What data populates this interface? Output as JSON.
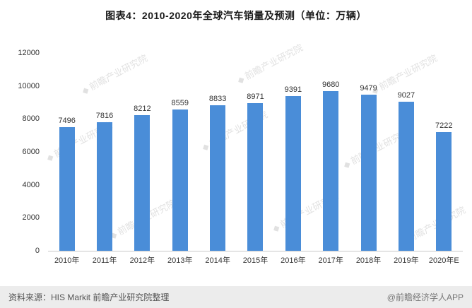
{
  "title": "图表4：2010-2020年全球汽车销量及预测（单位：万辆）",
  "footer": {
    "source": "资料来源：HIS Markit 前瞻产业研究院整理",
    "credit": "@前瞻经济学人APP"
  },
  "watermark_text": "前瞻产业研究院",
  "colors": {
    "bar": "#4a8dd8",
    "axis_text": "#333333",
    "footer_bg": "#ececec"
  },
  "chart_data": {
    "type": "bar",
    "title": "图表4：2010-2020年全球汽车销量及预测（单位：万辆）",
    "categories": [
      "2010年",
      "2011年",
      "2012年",
      "2013年",
      "2014年",
      "2015年",
      "2016年",
      "2017年",
      "2018年",
      "2019年",
      "2020年E"
    ],
    "values": [
      7496,
      7816,
      8212,
      8559,
      8833,
      8971,
      9391,
      9680,
      9479,
      9027,
      7222
    ],
    "xlabel": "",
    "ylabel": "",
    "unit": "万辆",
    "ylim": [
      0,
      12000
    ],
    "yticks": [
      0,
      2000,
      4000,
      6000,
      8000,
      10000,
      12000
    ],
    "grid": false,
    "legend_position": "none"
  }
}
